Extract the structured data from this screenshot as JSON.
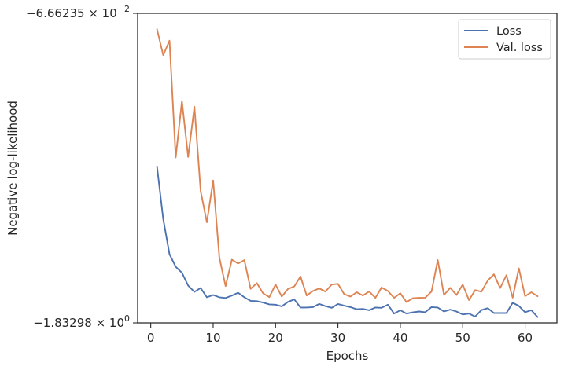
{
  "chart_data": {
    "type": "line",
    "title": "",
    "xlabel": "Epochs",
    "ylabel": "Negative log-likelihood",
    "xlim": [
      -2.1,
      65.1
    ],
    "ylim": [
      -1.83298,
      -0.0666235
    ],
    "x_ticks": [
      0,
      10,
      20,
      30,
      40,
      50,
      60
    ],
    "y_tick_labels": [
      {
        "mantissa": "−6.66235",
        "exponent": "−2",
        "value": -0.0666235
      },
      {
        "mantissa": "−1.83298",
        "exponent": "0",
        "value": -1.83298
      }
    ],
    "y_scale": "symlog",
    "grid": false,
    "legend_position": "top-right",
    "series": [
      {
        "name": "Loss",
        "color": "#4c72b0",
        "x": [
          1,
          2,
          3,
          4,
          5,
          6,
          7,
          8,
          9,
          10,
          11,
          12,
          13,
          14,
          15,
          16,
          17,
          18,
          19,
          20,
          21,
          22,
          23,
          24,
          25,
          26,
          27,
          28,
          29,
          30,
          31,
          32,
          33,
          34,
          35,
          36,
          37,
          38,
          39,
          40,
          41,
          42,
          43,
          44,
          45,
          46,
          47,
          48,
          49,
          50,
          51,
          52,
          53,
          54,
          55,
          56,
          57,
          58,
          59,
          60,
          61,
          62
        ],
        "y": [
          -0.94,
          -1.24,
          -1.441,
          -1.513,
          -1.547,
          -1.62,
          -1.656,
          -1.634,
          -1.687,
          -1.674,
          -1.687,
          -1.691,
          -1.677,
          -1.661,
          -1.687,
          -1.707,
          -1.709,
          -1.717,
          -1.727,
          -1.729,
          -1.739,
          -1.713,
          -1.699,
          -1.745,
          -1.745,
          -1.743,
          -1.725,
          -1.737,
          -1.747,
          -1.725,
          -1.735,
          -1.743,
          -1.755,
          -1.753,
          -1.761,
          -1.745,
          -1.747,
          -1.729,
          -1.78,
          -1.761,
          -1.78,
          -1.773,
          -1.768,
          -1.772,
          -1.743,
          -1.745,
          -1.768,
          -1.757,
          -1.768,
          -1.785,
          -1.78,
          -1.797,
          -1.76,
          -1.749,
          -1.777,
          -1.777,
          -1.777,
          -1.718,
          -1.736,
          -1.772,
          -1.761,
          -1.8
        ]
      },
      {
        "name": "Val. loss",
        "color": "#dd8452",
        "x": [
          1,
          2,
          3,
          4,
          5,
          6,
          7,
          8,
          9,
          10,
          11,
          12,
          13,
          14,
          15,
          16,
          17,
          18,
          19,
          20,
          21,
          22,
          23,
          24,
          25,
          26,
          27,
          28,
          29,
          30,
          31,
          32,
          33,
          34,
          35,
          36,
          37,
          38,
          39,
          40,
          41,
          42,
          43,
          44,
          45,
          46,
          47,
          48,
          49,
          50,
          51,
          52,
          53,
          54,
          55,
          56,
          57,
          58,
          59,
          60,
          61,
          62
        ],
        "y": [
          -0.157,
          -0.305,
          -0.222,
          -0.889,
          -0.567,
          -0.886,
          -0.599,
          -1.081,
          -1.259,
          -1.02,
          -1.461,
          -1.623,
          -1.472,
          -1.494,
          -1.475,
          -1.639,
          -1.606,
          -1.664,
          -1.686,
          -1.614,
          -1.683,
          -1.639,
          -1.625,
          -1.568,
          -1.677,
          -1.651,
          -1.636,
          -1.654,
          -1.614,
          -1.61,
          -1.669,
          -1.683,
          -1.658,
          -1.677,
          -1.654,
          -1.69,
          -1.631,
          -1.651,
          -1.69,
          -1.664,
          -1.714,
          -1.692,
          -1.69,
          -1.689,
          -1.654,
          -1.474,
          -1.674,
          -1.633,
          -1.674,
          -1.614,
          -1.703,
          -1.646,
          -1.655,
          -1.592,
          -1.556,
          -1.634,
          -1.561,
          -1.689,
          -1.522,
          -1.68,
          -1.658,
          -1.681
        ]
      }
    ]
  }
}
